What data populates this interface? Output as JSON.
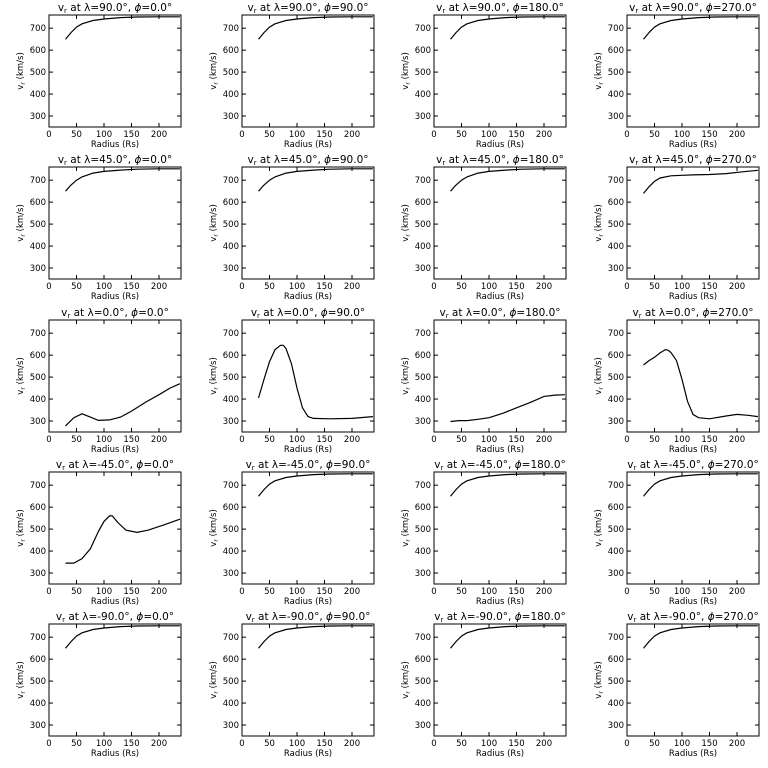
{
  "chart_data": {
    "type": "line",
    "layout": {
      "rows": 5,
      "cols": 4
    },
    "xlabel": "Radius (Rs)",
    "ylabel": "v",
    "ylabel_sub": "r",
    "ylabel_unit": "(km/s)",
    "title_var": "v",
    "title_var_sub": "r",
    "xlim": [
      0,
      240
    ],
    "ylim": [
      250,
      760
    ],
    "xticks": [
      0,
      50,
      100,
      150,
      200
    ],
    "yticks": [
      300,
      400,
      500,
      600,
      700
    ],
    "panels": [
      {
        "lambda": "90.0",
        "phi": "0.0",
        "x": [
          30,
          40,
          50,
          60,
          80,
          100,
          130,
          160,
          200,
          238
        ],
        "y": [
          650,
          680,
          705,
          720,
          735,
          742,
          748,
          751,
          752,
          752
        ]
      },
      {
        "lambda": "90.0",
        "phi": "90.0",
        "x": [
          30,
          40,
          50,
          60,
          80,
          100,
          130,
          160,
          200,
          238
        ],
        "y": [
          650,
          680,
          705,
          720,
          735,
          742,
          748,
          751,
          752,
          752
        ]
      },
      {
        "lambda": "90.0",
        "phi": "180.0",
        "x": [
          30,
          40,
          50,
          60,
          80,
          100,
          130,
          160,
          200,
          238
        ],
        "y": [
          650,
          680,
          705,
          720,
          735,
          742,
          748,
          751,
          752,
          752
        ]
      },
      {
        "lambda": "90.0",
        "phi": "270.0",
        "x": [
          30,
          40,
          50,
          60,
          80,
          100,
          130,
          160,
          200,
          238
        ],
        "y": [
          650,
          680,
          705,
          720,
          735,
          742,
          748,
          751,
          752,
          752
        ]
      },
      {
        "lambda": "45.0",
        "phi": "0.0",
        "x": [
          30,
          40,
          50,
          60,
          80,
          100,
          130,
          160,
          200,
          238
        ],
        "y": [
          650,
          678,
          700,
          715,
          732,
          740,
          746,
          750,
          752,
          752
        ]
      },
      {
        "lambda": "45.0",
        "phi": "90.0",
        "x": [
          30,
          40,
          50,
          60,
          80,
          100,
          130,
          160,
          200,
          238
        ],
        "y": [
          650,
          678,
          700,
          715,
          732,
          740,
          746,
          750,
          752,
          752
        ]
      },
      {
        "lambda": "45.0",
        "phi": "180.0",
        "x": [
          30,
          40,
          50,
          60,
          80,
          100,
          130,
          160,
          200,
          238
        ],
        "y": [
          650,
          678,
          700,
          715,
          732,
          740,
          746,
          750,
          752,
          752
        ]
      },
      {
        "lambda": "45.0",
        "phi": "270.0",
        "x": [
          30,
          40,
          50,
          60,
          80,
          100,
          120,
          150,
          180,
          210,
          238
        ],
        "y": [
          640,
          670,
          695,
          710,
          720,
          722,
          724,
          726,
          730,
          738,
          745
        ]
      },
      {
        "lambda": "0.0",
        "phi": "0.0",
        "x": [
          30,
          45,
          60,
          75,
          90,
          110,
          130,
          150,
          175,
          200,
          220,
          238
        ],
        "y": [
          278,
          315,
          333,
          318,
          303,
          305,
          318,
          345,
          385,
          420,
          450,
          470
        ]
      },
      {
        "lambda": "0.0",
        "phi": "90.0",
        "x": [
          30,
          40,
          50,
          60,
          70,
          75,
          80,
          90,
          100,
          110,
          120,
          130,
          160,
          200,
          238
        ],
        "y": [
          405,
          490,
          570,
          625,
          645,
          645,
          630,
          560,
          450,
          360,
          320,
          312,
          310,
          312,
          320
        ]
      },
      {
        "lambda": "0.0",
        "phi": "180.0",
        "x": [
          30,
          45,
          60,
          80,
          100,
          125,
          150,
          175,
          200,
          220,
          238
        ],
        "y": [
          298,
          302,
          302,
          308,
          315,
          335,
          360,
          385,
          412,
          418,
          420
        ]
      },
      {
        "lambda": "0.0",
        "phi": "270.0",
        "x": [
          30,
          40,
          50,
          60,
          70,
          75,
          80,
          90,
          100,
          110,
          120,
          130,
          150,
          180,
          200,
          220,
          238
        ],
        "y": [
          555,
          575,
          590,
          610,
          625,
          622,
          612,
          575,
          490,
          390,
          330,
          315,
          310,
          323,
          330,
          326,
          320
        ]
      },
      {
        "lambda": "-45.0",
        "phi": "0.0",
        "x": [
          30,
          45,
          60,
          75,
          90,
          100,
          110,
          115,
          125,
          140,
          160,
          180,
          210,
          238
        ],
        "y": [
          345,
          345,
          365,
          410,
          490,
          535,
          560,
          560,
          530,
          495,
          485,
          495,
          520,
          545
        ]
      },
      {
        "lambda": "-45.0",
        "phi": "90.0",
        "x": [
          30,
          40,
          50,
          60,
          80,
          100,
          130,
          160,
          200,
          238
        ],
        "y": [
          650,
          680,
          705,
          720,
          735,
          742,
          748,
          751,
          752,
          752
        ]
      },
      {
        "lambda": "-45.0",
        "phi": "180.0",
        "x": [
          30,
          40,
          50,
          60,
          80,
          100,
          130,
          160,
          200,
          238
        ],
        "y": [
          650,
          680,
          705,
          720,
          735,
          742,
          748,
          751,
          752,
          752
        ]
      },
      {
        "lambda": "-45.0",
        "phi": "270.0",
        "x": [
          30,
          40,
          50,
          60,
          80,
          100,
          130,
          160,
          200,
          238
        ],
        "y": [
          650,
          680,
          705,
          720,
          735,
          742,
          748,
          751,
          752,
          752
        ]
      },
      {
        "lambda": "-90.0",
        "phi": "0.0",
        "x": [
          30,
          40,
          50,
          60,
          80,
          100,
          130,
          160,
          200,
          238
        ],
        "y": [
          650,
          680,
          705,
          720,
          735,
          742,
          748,
          751,
          752,
          752
        ]
      },
      {
        "lambda": "-90.0",
        "phi": "90.0",
        "x": [
          30,
          40,
          50,
          60,
          80,
          100,
          130,
          160,
          200,
          238
        ],
        "y": [
          650,
          680,
          705,
          720,
          735,
          742,
          748,
          751,
          752,
          752
        ]
      },
      {
        "lambda": "-90.0",
        "phi": "180.0",
        "x": [
          30,
          40,
          50,
          60,
          80,
          100,
          130,
          160,
          200,
          238
        ],
        "y": [
          650,
          680,
          705,
          720,
          735,
          742,
          748,
          751,
          752,
          752
        ]
      },
      {
        "lambda": "-90.0",
        "phi": "270.0",
        "x": [
          30,
          40,
          50,
          60,
          80,
          100,
          130,
          160,
          200,
          238
        ],
        "y": [
          650,
          680,
          705,
          720,
          735,
          742,
          748,
          751,
          752,
          752
        ]
      }
    ]
  }
}
